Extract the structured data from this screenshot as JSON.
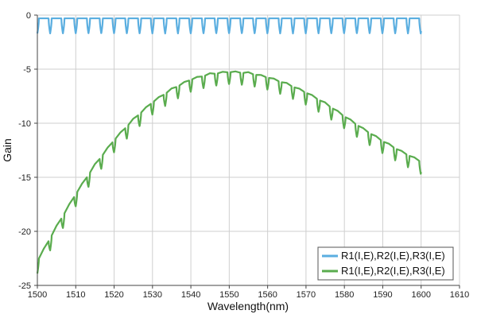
{
  "chart_data": {
    "type": "line",
    "xlabel": "Wavelength(nm)",
    "ylabel": "Gain",
    "xlim": [
      1500,
      1610
    ],
    "ylim": [
      -25,
      0
    ],
    "x_ticks": [
      1500,
      1510,
      1520,
      1530,
      1540,
      1550,
      1560,
      1570,
      1580,
      1590,
      1600,
      1610
    ],
    "x_tick_labels": [
      "1500",
      "1510",
      "1520",
      "1530",
      "1540",
      "1550",
      "1560",
      "1570",
      "1580",
      "1590",
      "1600",
      "1610"
    ],
    "y_ticks": [
      0,
      -5,
      -10,
      -15,
      -20,
      -25
    ],
    "y_tick_labels": [
      "0",
      "-5",
      "-10",
      "-15",
      "-20",
      "-25"
    ],
    "grid": true,
    "legend_position": "bottom-right",
    "x_range": [
      1500,
      1600
    ],
    "ripple_period_nm": 3.33,
    "series": [
      {
        "name": "R1(I,E),R2(I,E),R3(I,E)",
        "color": "#5aaee0",
        "envelope": {
          "x": [
            1500,
            1550,
            1600
          ],
          "y": [
            -0.3,
            -0.3,
            -0.3
          ]
        },
        "dip_depth": 1.4
      },
      {
        "name": "R1(I,E),R2(I,E),R3(I,E)",
        "color": "#5aac4e",
        "envelope": {
          "x": [
            1500,
            1505,
            1510,
            1515,
            1520,
            1525,
            1530,
            1535,
            1540,
            1545,
            1550,
            1555,
            1560,
            1565,
            1570,
            1575,
            1580,
            1585,
            1590,
            1595,
            1600
          ],
          "y": [
            -22.8,
            -19.6,
            -16.6,
            -13.9,
            -11.6,
            -9.7,
            -8.1,
            -6.9,
            -6.0,
            -5.5,
            -5.3,
            -5.4,
            -5.8,
            -6.4,
            -7.2,
            -8.2,
            -9.4,
            -10.6,
            -11.7,
            -12.7,
            -13.6
          ]
        },
        "dip_depth": 1.1
      }
    ]
  }
}
